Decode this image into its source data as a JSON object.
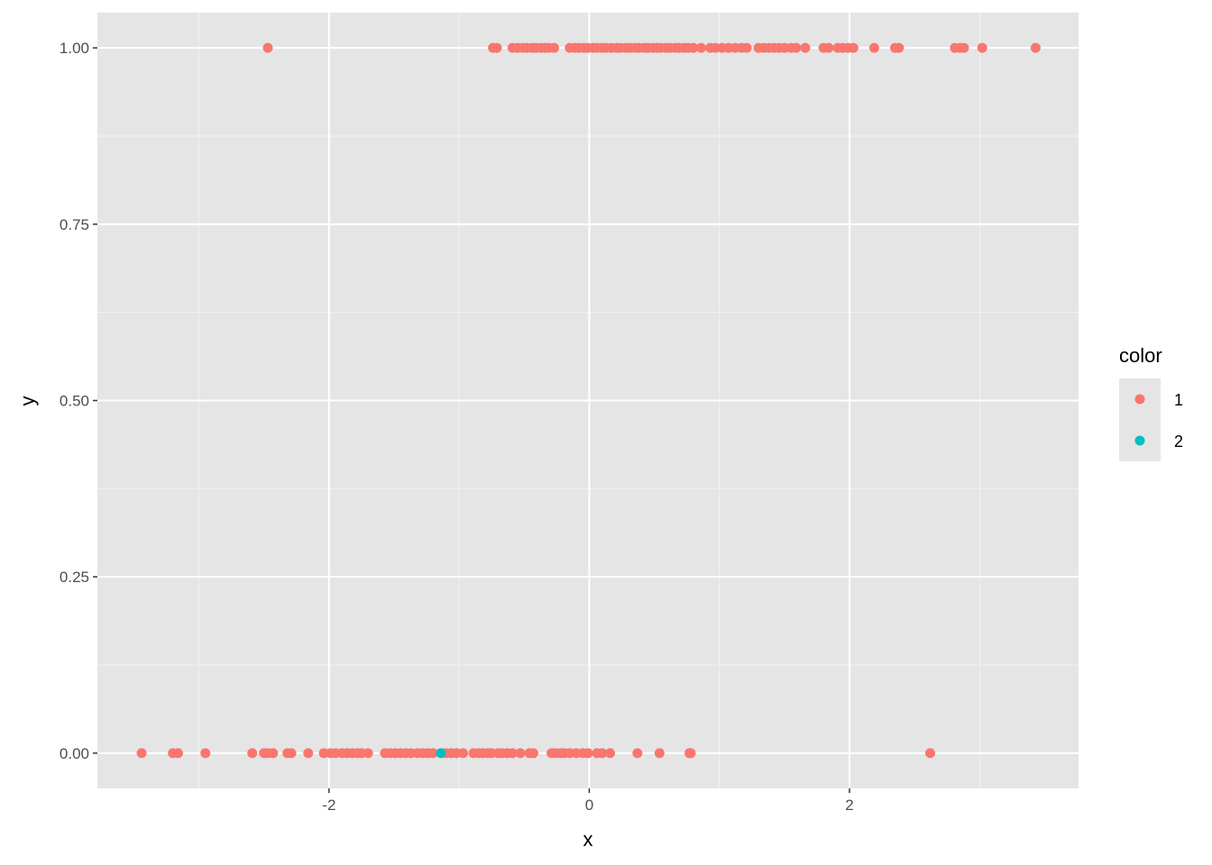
{
  "chart_data": {
    "type": "scatter",
    "title": "",
    "xlabel": "x",
    "ylabel": "y",
    "xlim": [
      -3.78,
      3.76
    ],
    "ylim": [
      -0.05,
      1.05
    ],
    "x_ticks": [
      -2,
      0,
      2
    ],
    "x_tick_labels": [
      "-2",
      "0",
      "2"
    ],
    "y_ticks": [
      0,
      0.25,
      0.5,
      0.75,
      1
    ],
    "y_tick_labels": [
      "0.00",
      "0.25",
      "0.50",
      "0.75",
      "1.00"
    ],
    "grid": true,
    "background": "#E5E5E5",
    "legend": {
      "title": "color",
      "position": "right",
      "entries": [
        "1",
        "2"
      ]
    },
    "series": [
      {
        "name": "1",
        "color": "#F8766D",
        "points_y1_x": [
          -2.47,
          -0.74,
          -0.71,
          -0.59,
          -0.55,
          -0.51,
          -0.48,
          -0.44,
          -0.41,
          -0.37,
          -0.34,
          -0.31,
          -0.27,
          -0.15,
          -0.11,
          -0.08,
          -0.04,
          -0.01,
          0.03,
          0.06,
          0.1,
          0.13,
          0.17,
          0.21,
          0.24,
          0.28,
          0.31,
          0.35,
          0.38,
          0.42,
          0.45,
          0.49,
          0.52,
          0.55,
          0.59,
          0.62,
          0.66,
          0.69,
          0.73,
          0.76,
          0.8,
          0.86,
          0.93,
          0.97,
          1.02,
          1.07,
          1.12,
          1.17,
          1.21,
          1.3,
          1.34,
          1.38,
          1.42,
          1.46,
          1.5,
          1.55,
          1.59,
          1.66,
          1.8,
          1.84,
          1.91,
          1.95,
          1.99,
          2.03,
          2.19,
          2.35,
          2.38,
          2.81,
          2.85,
          2.88,
          3.02,
          3.43
        ],
        "points_y0_x": [
          -3.44,
          -3.2,
          -3.16,
          -2.95,
          -2.59,
          -2.5,
          -2.47,
          -2.43,
          -2.32,
          -2.29,
          -2.16,
          -2.04,
          -1.99,
          -1.95,
          -1.9,
          -1.86,
          -1.82,
          -1.78,
          -1.75,
          -1.7,
          -1.57,
          -1.53,
          -1.49,
          -1.45,
          -1.41,
          -1.37,
          -1.32,
          -1.28,
          -1.24,
          -1.2,
          -1.1,
          -1.06,
          -1.02,
          -0.97,
          -0.89,
          -0.85,
          -0.82,
          -0.78,
          -0.75,
          -0.7,
          -0.67,
          -0.63,
          -0.59,
          -0.53,
          -0.46,
          -0.43,
          -0.29,
          -0.26,
          -0.22,
          -0.19,
          -0.15,
          -0.1,
          -0.05,
          -0.01,
          0.06,
          0.1,
          0.16,
          0.37,
          0.54,
          0.77,
          0.78,
          2.62
        ]
      },
      {
        "name": "2",
        "color": "#00BFC4",
        "points_y1_x": [],
        "points_y0_x": [
          -1.14
        ]
      }
    ]
  }
}
